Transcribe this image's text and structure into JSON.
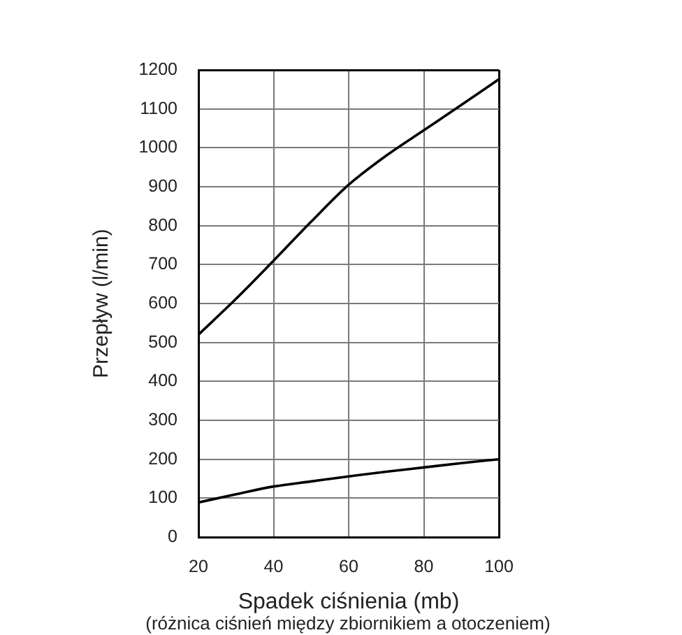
{
  "chart_data": {
    "type": "line",
    "xlabel": "Spadek ciśnienia (mb)",
    "ylabel": "Przepływ (l/min)",
    "annotations": [
      "(różnica ciśnień między zbiornikiem a otoczeniem)"
    ],
    "x": [
      20,
      30,
      40,
      50,
      60,
      70,
      80,
      90,
      100
    ],
    "series": [
      {
        "color": "#000000",
        "values": [
          520,
          612,
          710,
          810,
          905,
          980,
          1045,
          1110,
          1176
        ]
      },
      {
        "color": "#000000",
        "values": [
          89,
          110,
          130,
          143,
          156,
          168,
          179,
          190,
          200
        ]
      }
    ],
    "xlim": [
      20,
      100
    ],
    "xticks": [
      20,
      40,
      60,
      80,
      100
    ],
    "ylim": [
      0,
      1200
    ],
    "yticks": [
      0,
      100,
      200,
      300,
      400,
      500,
      600,
      700,
      800,
      900,
      1000,
      1100,
      1200
    ],
    "grid": true,
    "marker": "none",
    "line_style": "solid"
  }
}
